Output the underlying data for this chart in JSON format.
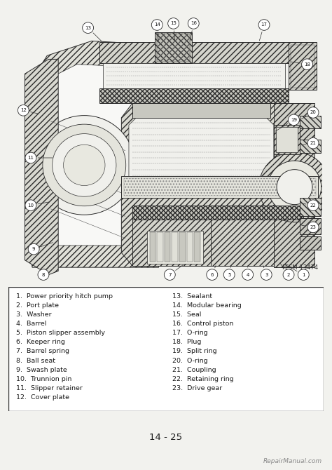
{
  "page_bg": "#f2f2ee",
  "diagram_bg": "#ffffff",
  "page_number": "14 - 25",
  "figure_label": "FESM-13474",
  "watermark": "RepairManual.com",
  "legend_items_left": [
    "1.  Power priority hitch pump",
    "2.  Port plate",
    "3.  Washer",
    "4.  Barrel",
    "5.  Piston slipper assembly",
    "6.  Keeper ring",
    "7.  Barrel spring",
    "8.  Ball seat",
    "9.  Swash plate",
    "10.  Trunnion pin",
    "11.  Slipper retainer",
    "12.  Cover plate"
  ],
  "legend_items_right": [
    "13.  Sealant",
    "14.  Modular bearing",
    "15.  Seal",
    "16.  Control piston",
    "17.  O-ring",
    "18.  Plug",
    "19.  Split ring",
    "20.  O-ring",
    "21.  Coupling",
    "22.  Retaining ring",
    "23.  Drive gear"
  ],
  "text_color": "#1a1a1a",
  "line_color": "#2a2a2a",
  "hatch_color": "#555555",
  "legend_font_size": 6.8,
  "page_num_font_size": 9.5,
  "label_font_size": 5.5,
  "callout_font_size": 5.0,
  "fig_label_font_size": 6.0
}
